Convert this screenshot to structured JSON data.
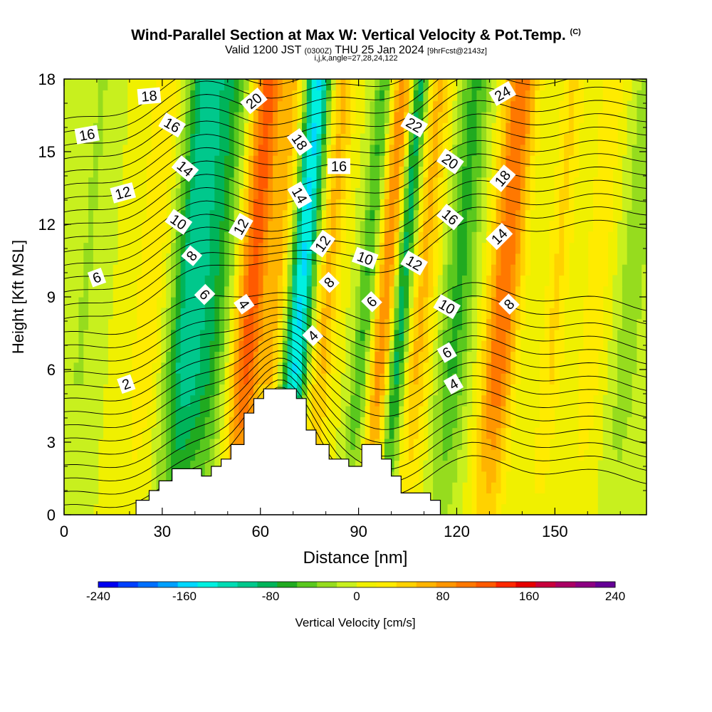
{
  "title": {
    "main": "Wind-Parallel Section at Max W: Vertical Velocity & Pot.Temp.",
    "copyright": "(C)",
    "valid_prefix": "Valid 1200 JST",
    "valid_z": "(0300Z)",
    "valid_date": "THU 25 Jan 2024",
    "fcst": "[9hrFcst@2143z]",
    "subtitle3": "i,j,k,angle=27,28,24,122"
  },
  "chart_data": {
    "type": "heatmap",
    "xlabel": "Distance [nm]",
    "ylabel": "Height [Kft MSL]",
    "xlim": [
      0,
      178
    ],
    "ylim": [
      0,
      18
    ],
    "xticks": [
      0,
      30,
      60,
      90,
      120,
      150
    ],
    "yticks": [
      0,
      3,
      6,
      9,
      12,
      15,
      18
    ],
    "colorbar": {
      "label": "Vertical Velocity [cm/s]",
      "range": [
        -240,
        240
      ],
      "tick_labels": [
        "-240",
        "-160",
        "-80",
        "0",
        "80",
        "160",
        "240"
      ],
      "colors": [
        "#0000f0",
        "#0040ff",
        "#0070ff",
        "#00a0ff",
        "#00d8ff",
        "#00f0e0",
        "#00dcb4",
        "#00c88c",
        "#00b45a",
        "#20aa20",
        "#5ac81e",
        "#96dc1e",
        "#c8f01e",
        "#f0f000",
        "#ffeb00",
        "#ffd200",
        "#ffb400",
        "#ff9600",
        "#ff7800",
        "#ff5a00",
        "#ff2800",
        "#e60000",
        "#c8003c",
        "#aa0064",
        "#8c0082",
        "#640096"
      ]
    },
    "velocity_bands": [
      {
        "x": 4,
        "w": 6,
        "v": -20
      },
      {
        "x": 24,
        "w": 8,
        "v": 30
      },
      {
        "x": 36,
        "w": 8,
        "v": -100
      },
      {
        "x": 44,
        "w": 8,
        "v": -60
      },
      {
        "x": 55,
        "w": 7,
        "v": 120
      },
      {
        "x": 63,
        "w": 4,
        "v": 50
      },
      {
        "x": 70,
        "w": 5,
        "v": -150
      },
      {
        "x": 78,
        "w": 5,
        "v": 60
      },
      {
        "x": 90,
        "w": 4,
        "v": -60
      },
      {
        "x": 96,
        "w": 5,
        "v": 90
      },
      {
        "x": 101,
        "w": 4,
        "v": -100
      },
      {
        "x": 107,
        "w": 6,
        "v": 60
      },
      {
        "x": 118,
        "w": 7,
        "v": -60
      },
      {
        "x": 132,
        "w": 7,
        "v": 110
      },
      {
        "x": 148,
        "w": 5,
        "v": 40
      },
      {
        "x": 160,
        "w": 6,
        "v": 30
      },
      {
        "x": 171,
        "w": 6,
        "v": -30
      }
    ],
    "terrain": [
      [
        0,
        0
      ],
      [
        22,
        0
      ],
      [
        22,
        0.6
      ],
      [
        26,
        0.6
      ],
      [
        26,
        1
      ],
      [
        29,
        1
      ],
      [
        29,
        1.4
      ],
      [
        33,
        1.4
      ],
      [
        33,
        1.9
      ],
      [
        42,
        1.9
      ],
      [
        42,
        1.6
      ],
      [
        45,
        1.6
      ],
      [
        45,
        2.0
      ],
      [
        48,
        2.0
      ],
      [
        48,
        2.3
      ],
      [
        51,
        2.3
      ],
      [
        51,
        2.9
      ],
      [
        55,
        2.9
      ],
      [
        55,
        4.2
      ],
      [
        58,
        4.2
      ],
      [
        58,
        4.8
      ],
      [
        61,
        4.8
      ],
      [
        61,
        5.2
      ],
      [
        71,
        5.2
      ],
      [
        71,
        4.8
      ],
      [
        74,
        4.8
      ],
      [
        74,
        3.5
      ],
      [
        77,
        3.5
      ],
      [
        77,
        2.9
      ],
      [
        81,
        2.9
      ],
      [
        81,
        2.3
      ],
      [
        87,
        2.3
      ],
      [
        87,
        2.0
      ],
      [
        91,
        2.0
      ],
      [
        91,
        2.9
      ],
      [
        97,
        2.9
      ],
      [
        97,
        2.3
      ],
      [
        100,
        2.3
      ],
      [
        100,
        1.6
      ],
      [
        103,
        1.6
      ],
      [
        103,
        0.9
      ],
      [
        112,
        0.9
      ],
      [
        112,
        0.6
      ],
      [
        115,
        0.6
      ],
      [
        115,
        0
      ],
      [
        178,
        0
      ]
    ],
    "contour_labels": [
      {
        "text": "2",
        "x": 19,
        "y": 5.4,
        "rot": -20
      },
      {
        "text": "6",
        "x": 10,
        "y": 9.8,
        "rot": -20
      },
      {
        "text": "12",
        "x": 18,
        "y": 13.3,
        "rot": -15
      },
      {
        "text": "16",
        "x": 7,
        "y": 15.7,
        "rot": -10
      },
      {
        "text": "18",
        "x": 26,
        "y": 17.3,
        "rot": -5
      },
      {
        "text": "16",
        "x": 33,
        "y": 16.1,
        "rot": 30
      },
      {
        "text": "14",
        "x": 37,
        "y": 14.3,
        "rot": 40
      },
      {
        "text": "10",
        "x": 35,
        "y": 12.1,
        "rot": 35
      },
      {
        "text": "8",
        "x": 39,
        "y": 10.7,
        "rot": -50
      },
      {
        "text": "6",
        "x": 43,
        "y": 9.1,
        "rot": 45
      },
      {
        "text": "4",
        "x": 55,
        "y": 8.7,
        "rot": 55
      },
      {
        "text": "12",
        "x": 54,
        "y": 11.9,
        "rot": -60
      },
      {
        "text": "20",
        "x": 58,
        "y": 17.1,
        "rot": -40
      },
      {
        "text": "18",
        "x": 72,
        "y": 15.4,
        "rot": 55
      },
      {
        "text": "14",
        "x": 72,
        "y": 13.2,
        "rot": 60
      },
      {
        "text": "12",
        "x": 79,
        "y": 11.2,
        "rot": -55
      },
      {
        "text": "8",
        "x": 81,
        "y": 9.6,
        "rot": -45
      },
      {
        "text": "4",
        "x": 76,
        "y": 7.4,
        "rot": -45
      },
      {
        "text": "16",
        "x": 84,
        "y": 14.4,
        "rot": 0
      },
      {
        "text": "10",
        "x": 92,
        "y": 10.6,
        "rot": 20
      },
      {
        "text": "6",
        "x": 94,
        "y": 8.8,
        "rot": -45
      },
      {
        "text": "22",
        "x": 107,
        "y": 16.1,
        "rot": 30
      },
      {
        "text": "12",
        "x": 107,
        "y": 10.4,
        "rot": 30
      },
      {
        "text": "20",
        "x": 118,
        "y": 14.6,
        "rot": 35
      },
      {
        "text": "16",
        "x": 118,
        "y": 12.3,
        "rot": 40
      },
      {
        "text": "10",
        "x": 117,
        "y": 8.6,
        "rot": 30
      },
      {
        "text": "6",
        "x": 117,
        "y": 6.7,
        "rot": -30
      },
      {
        "text": "4",
        "x": 119,
        "y": 5.4,
        "rot": -30
      },
      {
        "text": "24",
        "x": 134,
        "y": 17.4,
        "rot": -30
      },
      {
        "text": "18",
        "x": 134,
        "y": 13.9,
        "rot": -50
      },
      {
        "text": "14",
        "x": 133,
        "y": 11.5,
        "rot": -45
      },
      {
        "text": "8",
        "x": 136,
        "y": 8.7,
        "rot": -45
      }
    ]
  }
}
